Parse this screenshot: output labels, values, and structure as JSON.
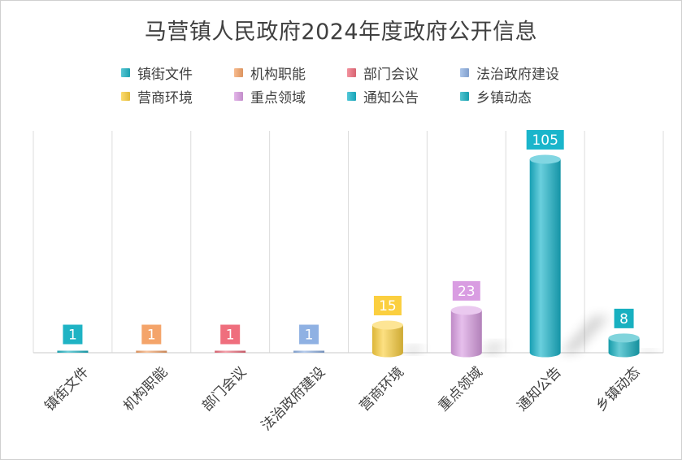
{
  "chart_data": {
    "type": "bar",
    "title": "马营镇人民政府2024年度政府公开信息",
    "categories": [
      "镇街文件",
      "机构职能",
      "部门会议",
      "法治政府建设",
      "营商环境",
      "重点领域",
      "通知公告",
      "乡镇动态"
    ],
    "values": [
      1,
      1,
      1,
      1,
      15,
      23,
      105,
      8
    ],
    "colors": [
      "#1fb3c4",
      "#f4a46a",
      "#ef6e7d",
      "#8fb1e3",
      "#fbcf3f",
      "#d99de2",
      "#1ab5cb",
      "#18b0c0"
    ],
    "ylim": [
      0,
      120
    ],
    "grid": "vertical",
    "legend_position": "top",
    "bar_style": "3d-cylinder"
  }
}
